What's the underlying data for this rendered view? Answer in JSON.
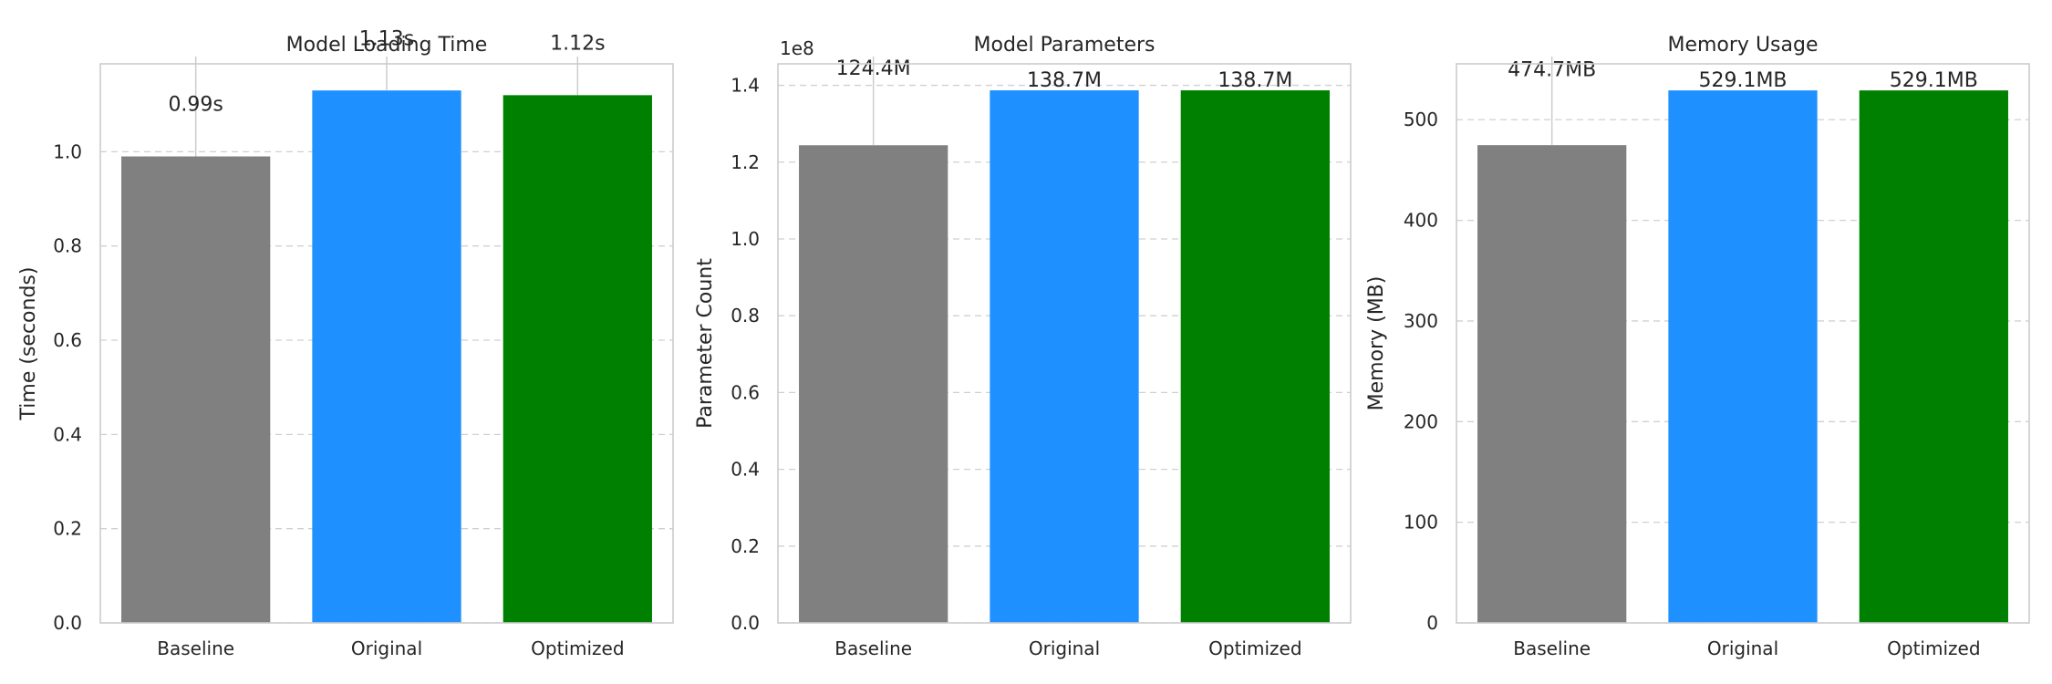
{
  "chart_data": [
    {
      "type": "bar",
      "title": "Model Loading Time",
      "xlabel": "",
      "ylabel": "Time (seconds)",
      "categories": [
        "Baseline",
        "Original",
        "Optimized"
      ],
      "values": [
        0.99,
        1.13,
        1.12
      ],
      "value_labels": [
        "0.99s",
        "1.13s",
        "1.12s"
      ],
      "colors": [
        "#808080",
        "#1E90FF",
        "#008000"
      ],
      "ylim": [
        0,
        1.1865
      ],
      "yticks": [
        0.0,
        0.2,
        0.4,
        0.6,
        0.8,
        1.0
      ],
      "ytick_labels": [
        "0.0",
        "0.2",
        "0.4",
        "0.6",
        "0.8",
        "1.0"
      ],
      "label_offset_values": [
        0.11,
        0.11,
        0.11
      ],
      "grid": "y-dashed"
    },
    {
      "type": "bar",
      "title": "Model Parameters",
      "xlabel": "",
      "ylabel": "Parameter Count",
      "offset_text": "1e8",
      "categories": [
        "Baseline",
        "Original",
        "Optimized"
      ],
      "values": [
        124400000,
        138700000,
        138700000
      ],
      "value_labels": [
        "124.4M",
        "138.7M",
        "138.7M"
      ],
      "colors": [
        "#808080",
        "#1E90FF",
        "#008000"
      ],
      "ylim": [
        0,
        145600000
      ],
      "yticks": [
        0,
        20000000,
        40000000,
        60000000,
        80000000,
        100000000,
        120000000,
        140000000
      ],
      "ytick_labels": [
        "0.0",
        "0.2",
        "0.4",
        "0.6",
        "0.8",
        "1.0",
        "1.2",
        "1.4"
      ],
      "label_offset_values": [
        20000000,
        0,
        0
      ],
      "grid": "y-dashed"
    },
    {
      "type": "bar",
      "title": "Memory Usage",
      "xlabel": "",
      "ylabel": "Memory (MB)",
      "categories": [
        "Baseline",
        "Original",
        "Optimized"
      ],
      "values": [
        474.7,
        529.1,
        529.1
      ],
      "value_labels": [
        "474.7MB",
        "529.1MB",
        "529.1MB"
      ],
      "colors": [
        "#808080",
        "#1E90FF",
        "#008000"
      ],
      "ylim": [
        0,
        555.5
      ],
      "yticks": [
        0,
        100,
        200,
        300,
        400,
        500
      ],
      "ytick_labels": [
        "0",
        "100",
        "200",
        "300",
        "400",
        "500"
      ],
      "label_offset_values": [
        75,
        0,
        0
      ],
      "grid": "y-dashed"
    }
  ],
  "colors": {
    "axes_edge": "#cccccc",
    "grid": "#d0d0d0",
    "text": "#262626",
    "background": "#ffffff"
  }
}
